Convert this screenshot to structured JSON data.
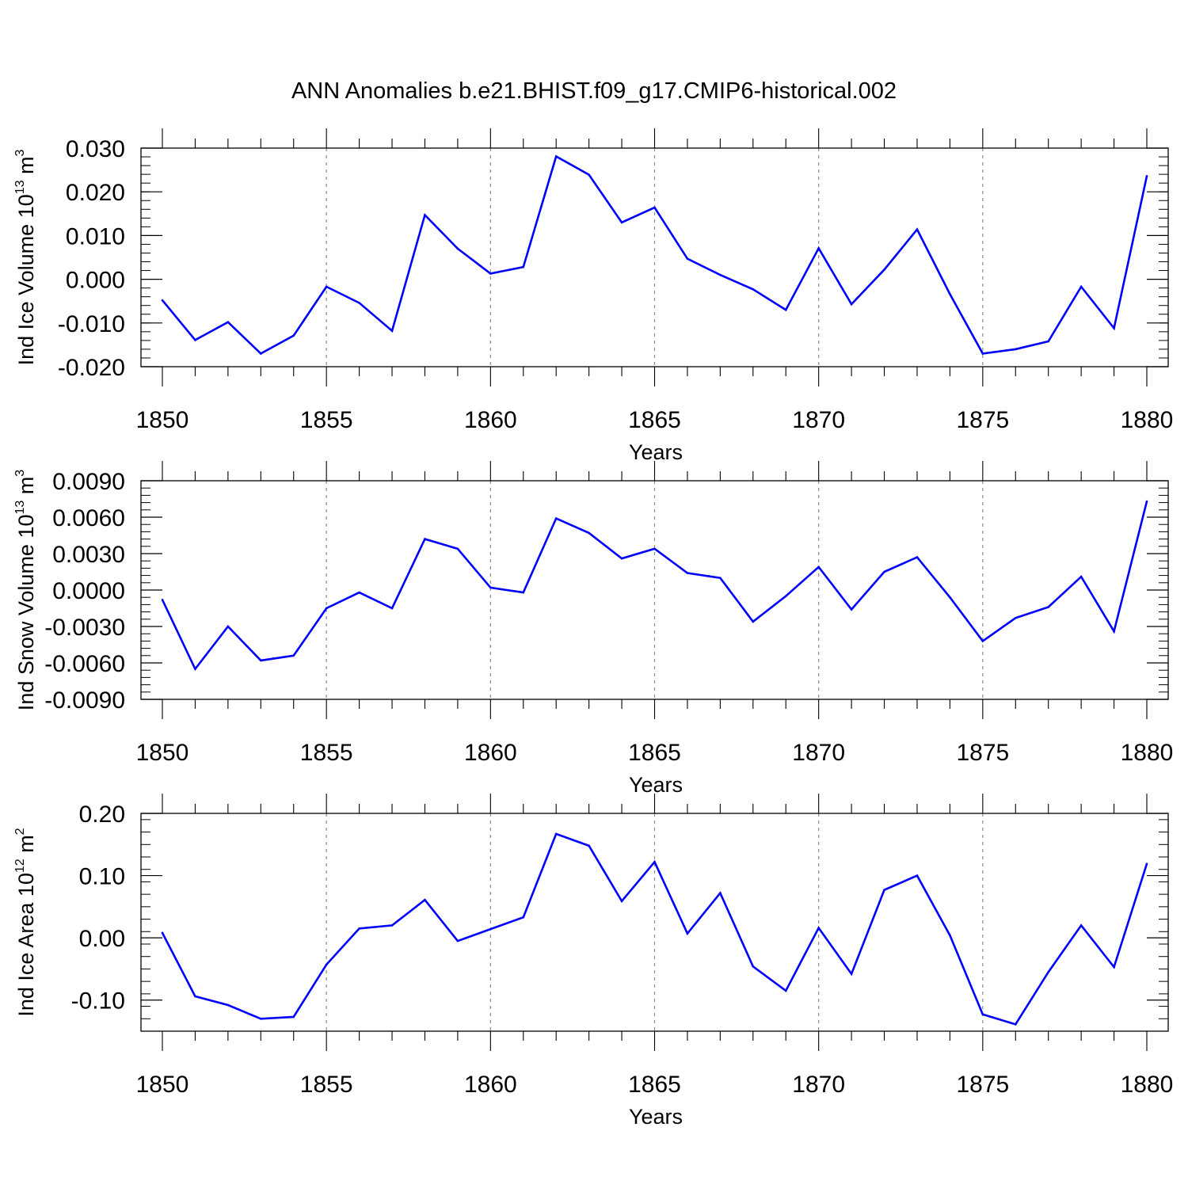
{
  "figure_title": "ANN Anomalies b.e21.BHIST.f09_g17.CMIP6-historical.002",
  "colors": {
    "line": "#0000ff",
    "axis": "#000000",
    "grid": "#8c8c8c",
    "background": "#ffffff"
  },
  "chart_data": [
    {
      "type": "line",
      "title": "",
      "xlabel": "Years",
      "ylabel_main": "Ind Ice Volume 10",
      "ylabel_exp": "13",
      "ylabel_unit": " m",
      "ylabel_unit_exp": "3",
      "xlim": [
        1850,
        1880
      ],
      "ylim": [
        -0.02,
        0.03
      ],
      "xticks": [
        1850,
        1855,
        1860,
        1865,
        1870,
        1875,
        1880
      ],
      "xtick_labels": [
        "1850",
        "1855",
        "1860",
        "1865",
        "1870",
        "1875",
        "1880"
      ],
      "yticks": [
        -0.02,
        -0.01,
        0,
        0.01,
        0.02,
        0.03
      ],
      "ytick_labels": [
        "-0.020",
        "-0.010",
        "0.000",
        "0.010",
        "0.020",
        "0.030"
      ],
      "grid": "vertical-dashed",
      "x": [
        1850,
        1851,
        1852,
        1853,
        1854,
        1855,
        1856,
        1857,
        1858,
        1859,
        1860,
        1861,
        1862,
        1863,
        1864,
        1865,
        1866,
        1867,
        1868,
        1869,
        1870,
        1871,
        1872,
        1873,
        1874,
        1875,
        1876,
        1877,
        1878,
        1879,
        1880
      ],
      "series": [
        {
          "name": "Ind Ice Volume",
          "values": [
            -0.0048,
            -0.0139,
            -0.0098,
            -0.017,
            -0.0129,
            -0.0017,
            -0.0054,
            -0.0118,
            0.0147,
            0.007,
            0.0013,
            0.0028,
            0.0281,
            0.0239,
            0.013,
            0.0164,
            0.0047,
            0.001,
            -0.0023,
            -0.007,
            0.0071,
            -0.0057,
            0.0022,
            0.0114,
            -0.0034,
            -0.017,
            -0.016,
            -0.0142,
            -0.0017,
            -0.0112,
            0.0236
          ]
        }
      ]
    },
    {
      "type": "line",
      "title": "",
      "xlabel": "Years",
      "ylabel_main": "Ind Snow Volume 10",
      "ylabel_exp": "13",
      "ylabel_unit": " m",
      "ylabel_unit_exp": "3",
      "xlim": [
        1850,
        1880
      ],
      "ylim": [
        -0.009,
        0.009
      ],
      "xticks": [
        1850,
        1855,
        1860,
        1865,
        1870,
        1875,
        1880
      ],
      "xtick_labels": [
        "1850",
        "1855",
        "1860",
        "1865",
        "1870",
        "1875",
        "1880"
      ],
      "yticks": [
        -0.009,
        -0.006,
        -0.003,
        0,
        0.003,
        0.006,
        0.009
      ],
      "ytick_labels": [
        "-0.0090",
        "-0.0060",
        "-0.0030",
        "0.0000",
        "0.0030",
        "0.0060",
        "0.0090"
      ],
      "grid": "vertical-dashed",
      "x": [
        1850,
        1851,
        1852,
        1853,
        1854,
        1855,
        1856,
        1857,
        1858,
        1859,
        1860,
        1861,
        1862,
        1863,
        1864,
        1865,
        1866,
        1867,
        1868,
        1869,
        1870,
        1871,
        1872,
        1873,
        1874,
        1875,
        1876,
        1877,
        1878,
        1879,
        1880
      ],
      "series": [
        {
          "name": "Ind Snow Volume",
          "values": [
            -0.0008,
            -0.0065,
            -0.003,
            -0.0058,
            -0.0054,
            -0.0015,
            -0.0002,
            -0.0015,
            0.0042,
            0.0034,
            0.0002,
            -0.0002,
            0.0059,
            0.0047,
            0.0026,
            0.0034,
            0.0014,
            0.001,
            -0.0026,
            -0.0005,
            0.0019,
            -0.0016,
            0.0015,
            0.0027,
            -0.0006,
            -0.0042,
            -0.0023,
            -0.0014,
            0.0011,
            -0.0034,
            0.0073
          ]
        }
      ]
    },
    {
      "type": "line",
      "title": "",
      "xlabel": "Years",
      "ylabel_main": "Ind Ice Area 10",
      "ylabel_exp": "12",
      "ylabel_unit": " m",
      "ylabel_unit_exp": "2",
      "xlim": [
        1850,
        1880
      ],
      "ylim": [
        -0.15,
        0.2
      ],
      "xticks": [
        1850,
        1855,
        1860,
        1865,
        1870,
        1875,
        1880
      ],
      "xtick_labels": [
        "1850",
        "1855",
        "1860",
        "1865",
        "1870",
        "1875",
        "1880"
      ],
      "yticks": [
        -0.1,
        0,
        0.1,
        0.2
      ],
      "ytick_labels": [
        "-0.10",
        "0.00",
        "0.10",
        "0.20"
      ],
      "grid": "vertical-dashed",
      "x": [
        1850,
        1851,
        1852,
        1853,
        1854,
        1855,
        1856,
        1857,
        1858,
        1859,
        1860,
        1861,
        1862,
        1863,
        1864,
        1865,
        1866,
        1867,
        1868,
        1869,
        1870,
        1871,
        1872,
        1873,
        1874,
        1875,
        1876,
        1877,
        1878,
        1879,
        1880
      ],
      "series": [
        {
          "name": "Ind Ice Area",
          "values": [
            0.008,
            -0.094,
            -0.108,
            -0.13,
            -0.127,
            -0.043,
            0.015,
            0.02,
            0.061,
            -0.005,
            0.014,
            0.033,
            0.167,
            0.148,
            0.059,
            0.122,
            0.007,
            0.072,
            -0.046,
            -0.085,
            0.016,
            -0.058,
            0.077,
            0.1,
            0.004,
            -0.123,
            -0.139,
            -0.055,
            0.02,
            -0.047,
            0.119
          ]
        }
      ]
    }
  ]
}
